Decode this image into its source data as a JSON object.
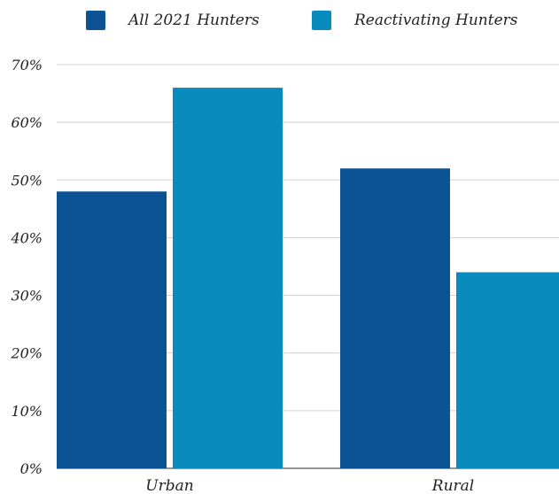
{
  "chart_data": {
    "type": "bar",
    "categories": [
      "Urban",
      "Rural"
    ],
    "series": [
      {
        "name": "All 2021 Hunters",
        "values": [
          48,
          52
        ],
        "color": "#0b5394"
      },
      {
        "name": "Reactivating Hunters",
        "values": [
          66,
          34
        ],
        "color": "#0a8bbd"
      }
    ],
    "ylim": [
      0,
      70
    ],
    "y_ticks": [
      0,
      10,
      20,
      30,
      40,
      50,
      60,
      70
    ],
    "y_tick_labels": [
      "0%",
      "10%",
      "20%",
      "30%",
      "40%",
      "50%",
      "60%",
      "70%"
    ],
    "grid": true,
    "legend_position": "top"
  }
}
